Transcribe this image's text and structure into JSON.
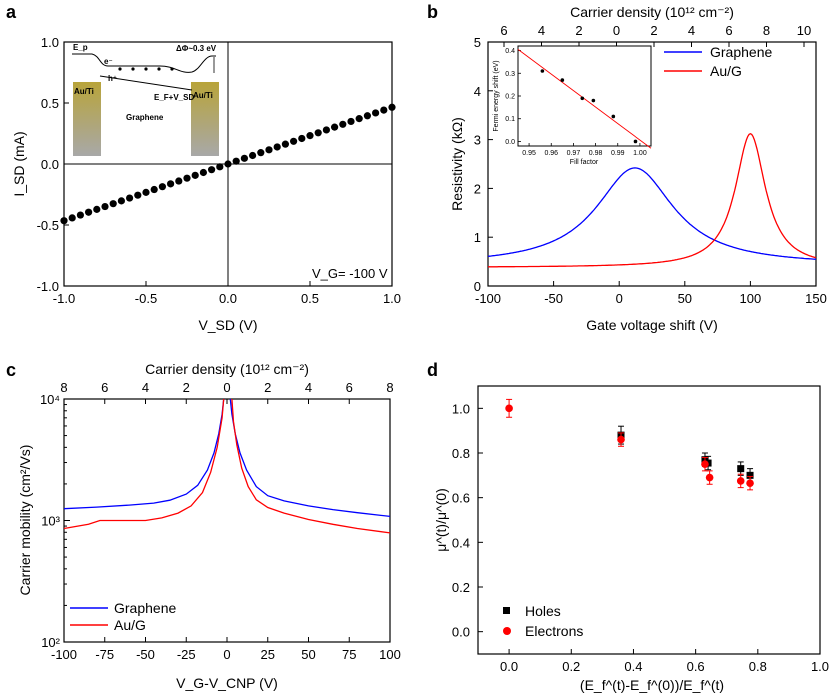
{
  "figure": {
    "panels": [
      "a",
      "b",
      "c",
      "d"
    ]
  },
  "chart_data": [
    {
      "id": "a",
      "type": "scatter",
      "xlabel": "V_SD (V)",
      "ylabel": "I_SD (mA)",
      "xlim": [
        -1.0,
        1.0
      ],
      "ylim": [
        -1.0,
        1.0
      ],
      "xticks": [
        "-1.0",
        "-0.5",
        "0.0",
        "0.5",
        "1.0"
      ],
      "yticks": [
        "1.0",
        "0.5",
        "0.0",
        "-0.5",
        "-1.0"
      ],
      "slope": 0.465,
      "x": [
        -1.0,
        -0.95,
        -0.9,
        -0.85,
        -0.8,
        -0.75,
        -0.7,
        -0.65,
        -0.6,
        -0.55,
        -0.5,
        -0.45,
        -0.4,
        -0.35,
        -0.3,
        -0.25,
        -0.2,
        -0.15,
        -0.1,
        -0.05,
        0.0,
        0.05,
        0.1,
        0.15,
        0.2,
        0.25,
        0.3,
        0.35,
        0.4,
        0.45,
        0.5,
        0.55,
        0.6,
        0.65,
        0.7,
        0.75,
        0.8,
        0.85,
        0.9,
        0.95,
        1.0
      ],
      "annotation": "V_G= -100 V",
      "inset": {
        "labels": {
          "ep": "E_p",
          "e": "e⁻",
          "h": "h⁺",
          "dphi": "ΔΦ~0.3 eV",
          "ef": "E_F+V_SD",
          "left_contact": "Au/Ti",
          "right_contact": "Au/Ti",
          "channel": "Graphene"
        }
      }
    },
    {
      "id": "b",
      "type": "line",
      "xlabel": "Gate voltage shift (V)",
      "ylabel": "Resistivity (kΩ)",
      "top_xlabel": "Carrier density (10¹² cm⁻²)",
      "xlim": [
        -100,
        150
      ],
      "ylim": [
        0,
        5
      ],
      "xticks": [
        "-100",
        "-50",
        "0",
        "50",
        "100",
        "150"
      ],
      "yticks": [
        "0",
        "1",
        "2",
        "3",
        "4",
        "5"
      ],
      "top_ticks": [
        "6",
        "4",
        "2",
        "0",
        "2",
        "4",
        "6",
        "8",
        "10"
      ],
      "series": [
        {
          "name": "Graphene",
          "color": "#0000ff",
          "peak_x": 12,
          "peak_y": 2.42,
          "base": 0.42,
          "width": 36
        },
        {
          "name": "Au/G",
          "color": "#ff0000",
          "peak_x": 100,
          "peak_y": 3.12,
          "base": 0.38,
          "width": 14
        }
      ],
      "inset": {
        "type": "scatter",
        "xlabel": "Fill factor",
        "ylabel": "Fermi energy shift (eV)",
        "xlim": [
          0.945,
          1.005
        ],
        "ylim": [
          -0.02,
          0.42
        ],
        "xticks": [
          "0.95",
          "0.96",
          "0.97",
          "0.98",
          "0.99",
          "1.00"
        ],
        "yticks": [
          "0.4",
          "0.3",
          "0.2",
          "0.1",
          "0.0"
        ],
        "points": [
          [
            0.956,
            0.31
          ],
          [
            0.965,
            0.27
          ],
          [
            0.974,
            0.19
          ],
          [
            0.979,
            0.18
          ],
          [
            0.988,
            0.11
          ],
          [
            0.998,
            0.0
          ]
        ],
        "fit": [
          [
            0.945,
            0.405
          ],
          [
            1.005,
            -0.03
          ]
        ]
      }
    },
    {
      "id": "c",
      "type": "line",
      "xlabel": "V_G-V_CNP (V)",
      "ylabel": "Carrier mobility (cm²/Vs)",
      "top_xlabel": "Carrier density (10¹² cm⁻²)",
      "xlim": [
        -100,
        100
      ],
      "ylim_log": [
        100,
        10000
      ],
      "xticks": [
        "-100",
        "-75",
        "-50",
        "-25",
        "0",
        "25",
        "50",
        "75",
        "100"
      ],
      "yticks": [
        "10⁴",
        "10³",
        "10²"
      ],
      "top_ticks": [
        "8",
        "6",
        "4",
        "2",
        "0",
        "2",
        "4",
        "6",
        "8"
      ],
      "series": [
        {
          "name": "Graphene",
          "color": "#0000ff",
          "x": [
            -100,
            -80,
            -60,
            -45,
            -35,
            -25,
            -18,
            -12,
            -8,
            -5,
            -3,
            -2
          ],
          "y": [
            1250,
            1290,
            1340,
            1390,
            1470,
            1650,
            1950,
            2600,
            3600,
            5200,
            7500,
            10000
          ],
          "x2": [
            2,
            3,
            5,
            8,
            12,
            18,
            25,
            35,
            50,
            65,
            80,
            100
          ],
          "y2": [
            10000,
            7500,
            5200,
            3600,
            2600,
            1900,
            1600,
            1450,
            1320,
            1230,
            1160,
            1080
          ]
        },
        {
          "name": "Au/G",
          "color": "#ff0000",
          "x": [
            -100,
            -85,
            -78,
            -50,
            -40,
            -30,
            -22,
            -15,
            -10,
            -6,
            -3,
            -2
          ],
          "y": [
            860,
            930,
            1000,
            1000,
            1050,
            1150,
            1320,
            1700,
            2500,
            4000,
            7000,
            10000
          ],
          "x2": [
            3,
            4,
            6,
            9,
            13,
            18,
            25,
            35,
            50,
            65,
            80,
            100
          ],
          "y2": [
            10000,
            6500,
            4200,
            2700,
            1900,
            1480,
            1280,
            1150,
            1020,
            930,
            860,
            790
          ]
        }
      ]
    },
    {
      "id": "d",
      "type": "scatter",
      "xlabel": "(E_f^(t)-E_f^(0))/E_f^(t)",
      "ylabel": "μ^(t)/μ^(0)",
      "xlim": [
        -0.1,
        1.0
      ],
      "ylim": [
        -0.1,
        1.1
      ],
      "xticks": [
        "0.0",
        "0.2",
        "0.4",
        "0.6",
        "0.8",
        "1.0"
      ],
      "yticks": [
        "1.0",
        "0.8",
        "0.6",
        "0.4",
        "0.2",
        "0.0"
      ],
      "series": [
        {
          "name": "Holes",
          "marker": "square",
          "color": "#000000",
          "x": [
            0.36,
            0.63,
            0.64,
            0.745,
            0.775
          ],
          "y": [
            0.88,
            0.77,
            0.755,
            0.73,
            0.7
          ],
          "err": [
            0.04,
            0.03,
            0.03,
            0.03,
            0.03
          ]
        },
        {
          "name": "Electrons",
          "marker": "circle",
          "color": "#ff0000",
          "x": [
            0.0,
            0.36,
            0.63,
            0.645,
            0.745,
            0.775
          ],
          "y": [
            1.0,
            0.86,
            0.75,
            0.69,
            0.675,
            0.665
          ],
          "err": [
            0.04,
            0.03,
            0.03,
            0.03,
            0.03,
            0.03
          ]
        }
      ]
    }
  ]
}
